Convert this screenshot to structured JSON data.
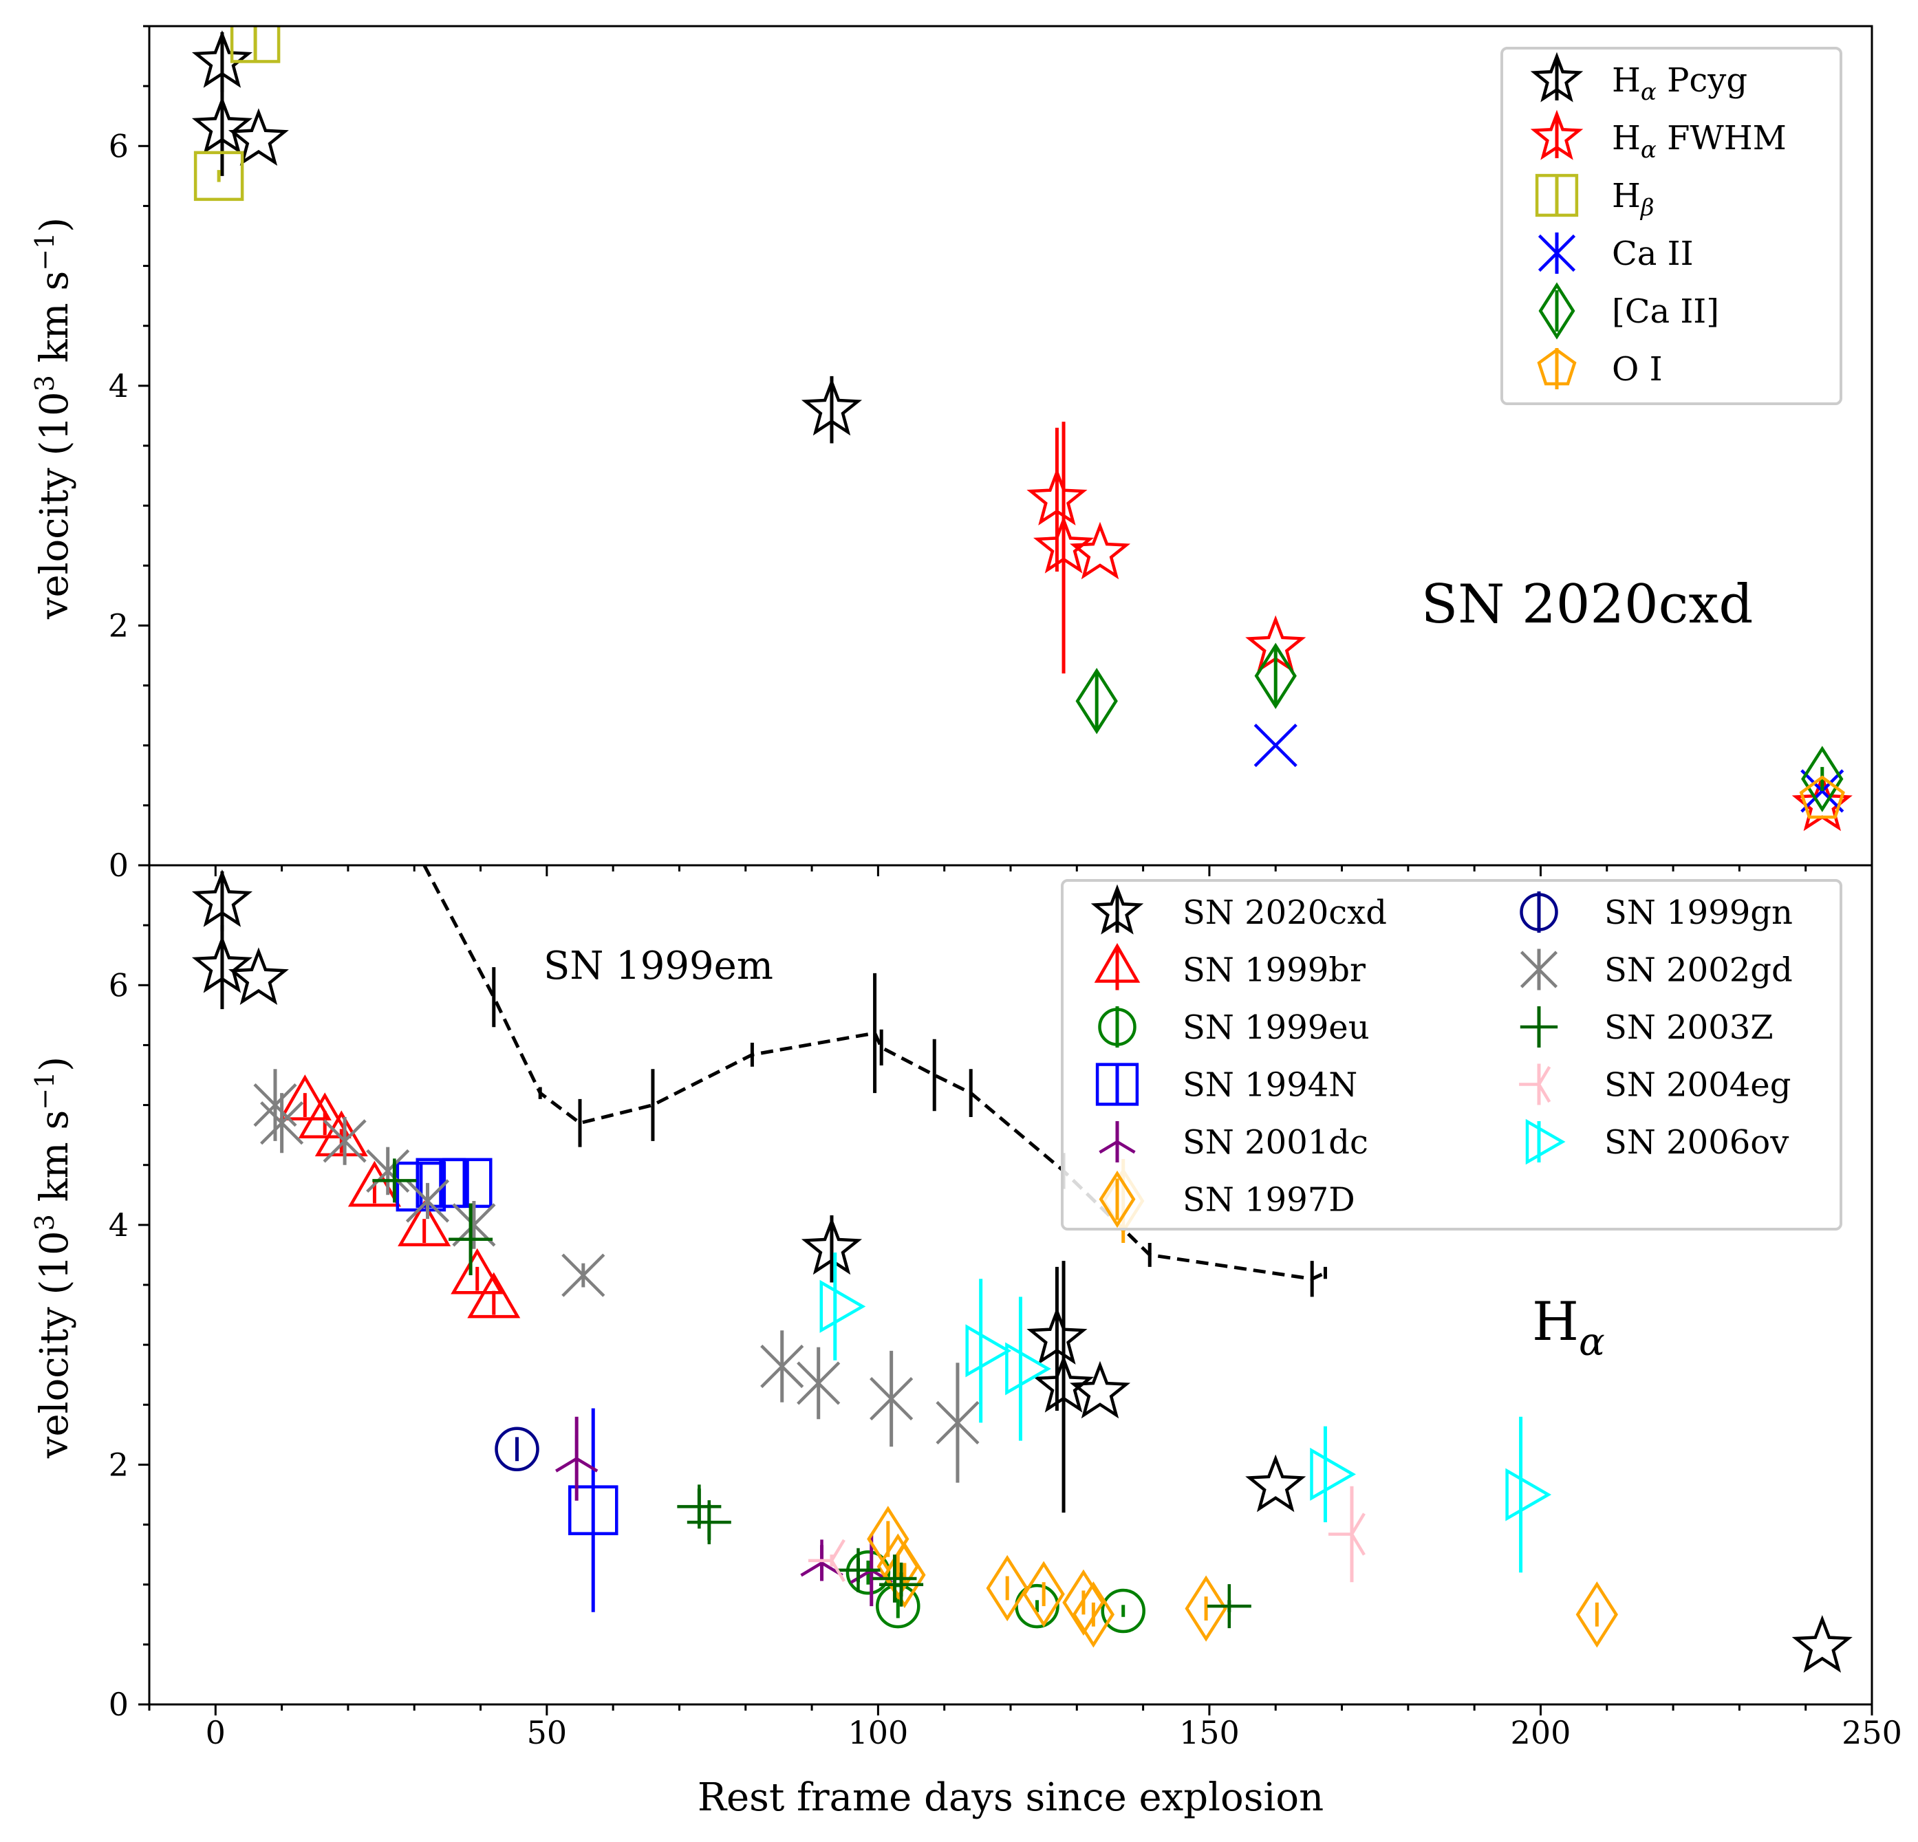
{
  "chart_data": [
    {
      "panel": "top",
      "type": "scatter",
      "annotation": "SN 2020cxd",
      "ylabel": "velocity (10^3 km s^-1)",
      "ylim": [
        0,
        7
      ],
      "yticks": [
        "0",
        "2",
        "4",
        "6"
      ],
      "legend": {
        "placement": "top-right",
        "entries": [
          {
            "label": "H_α Pcyg",
            "series": "ha_pcyg"
          },
          {
            "label": "H_α FWHM",
            "series": "ha_fwhm"
          },
          {
            "label": "H_β",
            "series": "hb"
          },
          {
            "label": "Ca II",
            "series": "caii"
          },
          {
            "label": "[Ca II]",
            "series": "caii_forb"
          },
          {
            "label": "O I",
            "series": "oi"
          }
        ]
      },
      "series": [
        {
          "id": "ha_pcyg",
          "marker": "star",
          "color": "#000000",
          "points": [
            [
              1,
              6.7,
              0.25
            ],
            [
              1,
              6.15,
              0.4
            ],
            [
              6.5,
              6.05,
              0
            ],
            [
              93,
              3.8,
              0.28
            ]
          ]
        },
        {
          "id": "ha_fwhm",
          "marker": "star",
          "color": "#ff0000",
          "points": [
            [
              127,
              3.05,
              0.6
            ],
            [
              128,
              2.65,
              1.05
            ],
            [
              133.5,
              2.6,
              0
            ],
            [
              160,
              1.82,
              0
            ],
            [
              242.5,
              0.5,
              0
            ]
          ]
        },
        {
          "id": "hb",
          "marker": "square",
          "color": "#bcbd22",
          "points": [
            [
              0.5,
              5.75,
              0.05
            ],
            [
              6,
              6.9,
              0.2
            ]
          ]
        },
        {
          "id": "caii",
          "marker": "x",
          "color": "#0000ff",
          "points": [
            [
              160,
              1.0,
              0
            ],
            [
              242.5,
              0.62,
              0
            ]
          ]
        },
        {
          "id": "caii_forb",
          "marker": "diamond",
          "color": "#008000",
          "points": [
            [
              133,
              1.37,
              0.25
            ],
            [
              160,
              1.58,
              0.25
            ],
            [
              242.5,
              0.72,
              0.1
            ]
          ]
        },
        {
          "id": "oi",
          "marker": "pentagon",
          "color": "#ffa500",
          "points": [
            [
              242.5,
              0.55,
              0
            ]
          ]
        }
      ]
    },
    {
      "panel": "bottom",
      "type": "scatter",
      "annotation_main": "H",
      "annotation_sub": "α",
      "reference_label": "SN 1999em",
      "xlabel": "Rest frame days since explosion",
      "ylabel": "velocity (10^3 km s^-1)",
      "xlim": [
        -10,
        250
      ],
      "ylim": [
        0,
        7
      ],
      "xticks": [
        "0",
        "50",
        "100",
        "150",
        "200",
        "250"
      ],
      "yticks": [
        "0",
        "2",
        "4",
        "6"
      ],
      "legend": {
        "placement": "top-right",
        "columns": 2,
        "entries": [
          {
            "label": "SN 2020cxd",
            "series": "sn2020cxd"
          },
          {
            "label": "SN 1999br",
            "series": "sn1999br"
          },
          {
            "label": "SN 1999eu",
            "series": "sn1999eu"
          },
          {
            "label": "SN 1994N",
            "series": "sn1994n"
          },
          {
            "label": "SN 2001dc",
            "series": "sn2001dc"
          },
          {
            "label": "SN 1997D",
            "series": "sn1997d"
          },
          {
            "label": "SN 1999gn",
            "series": "sn1999gn"
          },
          {
            "label": "SN 2002gd",
            "series": "sn2002gd"
          },
          {
            "label": "SN 2003Z",
            "series": "sn2003z"
          },
          {
            "label": "SN 2004eg",
            "series": "sn2004eg"
          },
          {
            "label": "SN 2006ov",
            "series": "sn2006ov"
          }
        ]
      },
      "reference_line": {
        "name": "SN 1999em",
        "color": "#000000",
        "style": "dashed",
        "points": [
          [
            31.5,
            7.0,
            0
          ],
          [
            42,
            5.9,
            0.25
          ],
          [
            49,
            5.1,
            0.05
          ],
          [
            55,
            4.85,
            0.2
          ],
          [
            66,
            5.0,
            0.3
          ],
          [
            81,
            5.42,
            0.1
          ],
          [
            99.5,
            5.6,
            0.5
          ],
          [
            100.5,
            5.48,
            0.15
          ],
          [
            108.5,
            5.25,
            0.3
          ],
          [
            114,
            5.1,
            0.2
          ],
          [
            128,
            4.45,
            0.15
          ],
          [
            141,
            3.75,
            0.1
          ],
          [
            165.5,
            3.55,
            0.15
          ],
          [
            167.5,
            3.6,
            0.05
          ]
        ]
      },
      "series": [
        {
          "id": "sn2020cxd",
          "marker": "star",
          "color": "#000000",
          "points": [
            [
              1,
              6.7,
              0.25
            ],
            [
              1,
              6.15,
              0.35
            ],
            [
              6.5,
              6.05,
              0
            ],
            [
              93,
              3.8,
              0.28
            ],
            [
              127,
              3.05,
              0.6
            ],
            [
              128,
              2.65,
              1.05
            ],
            [
              133.5,
              2.6,
              0
            ],
            [
              160,
              1.82,
              0
            ],
            [
              242.5,
              0.48,
              0
            ]
          ]
        },
        {
          "id": "sn1999br",
          "marker": "triangle-up",
          "color": "#ff0000",
          "points": [
            [
              13.5,
              5.0,
              0.1
            ],
            [
              16.5,
              4.85,
              0.1
            ],
            [
              19,
              4.7,
              0.1
            ],
            [
              24,
              4.28,
              0.1
            ],
            [
              31.5,
              3.95,
              0.1
            ],
            [
              39.5,
              3.55,
              0.1
            ],
            [
              42,
              3.35,
              0.1
            ]
          ]
        },
        {
          "id": "sn1999eu",
          "marker": "circle",
          "color": "#008000",
          "points": [
            [
              98.5,
              1.1,
              0.1
            ],
            [
              103,
              0.82,
              0.1
            ],
            [
              124,
              0.82,
              0.05
            ],
            [
              137,
              0.78,
              0.05
            ]
          ]
        },
        {
          "id": "sn1994n",
          "marker": "square",
          "color": "#0000ff",
          "points": [
            [
              57,
              1.62,
              0.85
            ],
            [
              31,
              4.32,
              0.2
            ],
            [
              34,
              4.35,
              0.2
            ],
            [
              38,
              4.35,
              0.2
            ]
          ]
        },
        {
          "id": "sn2001dc",
          "marker": "tri-down",
          "color": "#800080",
          "points": [
            [
              54.5,
              2.05,
              0.35
            ],
            [
              91.5,
              1.18,
              0.15
            ],
            [
              99,
              1.12,
              0.3
            ]
          ]
        },
        {
          "id": "sn1997d",
          "marker": "diamond",
          "color": "#ffa500",
          "points": [
            [
              101.5,
              1.38,
              0.15
            ],
            [
              103,
              1.15,
              0.1
            ],
            [
              104,
              1.08,
              0.1
            ],
            [
              119.5,
              0.97,
              0.1
            ],
            [
              125,
              0.92,
              0.1
            ],
            [
              131,
              0.85,
              0.1
            ],
            [
              132.5,
              0.75,
              0.1
            ],
            [
              149.5,
              0.8,
              0.1
            ],
            [
              208.5,
              0.75,
              0.1
            ],
            [
              137,
              4.2,
              0.35
            ]
          ]
        },
        {
          "id": "sn1999gn",
          "marker": "circle",
          "color": "#00008b",
          "points": [
            [
              45.5,
              2.13,
              0.1
            ]
          ]
        },
        {
          "id": "sn2002gd",
          "marker": "x",
          "color": "#808080",
          "points": [
            [
              9,
              5.0,
              0.3
            ],
            [
              10,
              4.85,
              0.25
            ],
            [
              19.5,
              4.7,
              0.2
            ],
            [
              26,
              4.45,
              0.2
            ],
            [
              32,
              4.2,
              0.15
            ],
            [
              39,
              4.0,
              0.2
            ],
            [
              55.5,
              3.58,
              0.1
            ],
            [
              85.5,
              2.82,
              0.3
            ],
            [
              91,
              2.68,
              0.3
            ],
            [
              102,
              2.55,
              0.4
            ],
            [
              112,
              2.35,
              0.5
            ]
          ]
        },
        {
          "id": "sn2003z",
          "marker": "plus",
          "color": "#006400",
          "points": [
            [
              27,
              4.37,
              0.15
            ],
            [
              38.5,
              3.88,
              0.3
            ],
            [
              73,
              1.65,
              0.15
            ],
            [
              74.5,
              1.52,
              0.15
            ],
            [
              97,
              1.12,
              0.1
            ],
            [
              102.5,
              1.05,
              0.2
            ],
            [
              103.5,
              1.0,
              0.1
            ],
            [
              153,
              0.82,
              0.05
            ]
          ]
        },
        {
          "id": "sn2004eg",
          "marker": "tri-right",
          "color": "#ffc0cb",
          "points": [
            [
              93,
              1.2,
              0.05
            ],
            [
              171.5,
              1.42,
              0.4
            ]
          ]
        },
        {
          "id": "sn2006ov",
          "marker": "triangle-right",
          "color": "#00ffff",
          "points": [
            [
              93.5,
              3.32,
              0.45
            ],
            [
              115.5,
              2.95,
              0.6
            ],
            [
              121.5,
              2.8,
              0.6
            ],
            [
              167.5,
              1.92,
              0.4
            ],
            [
              197,
              1.75,
              0.65
            ]
          ]
        }
      ]
    }
  ]
}
